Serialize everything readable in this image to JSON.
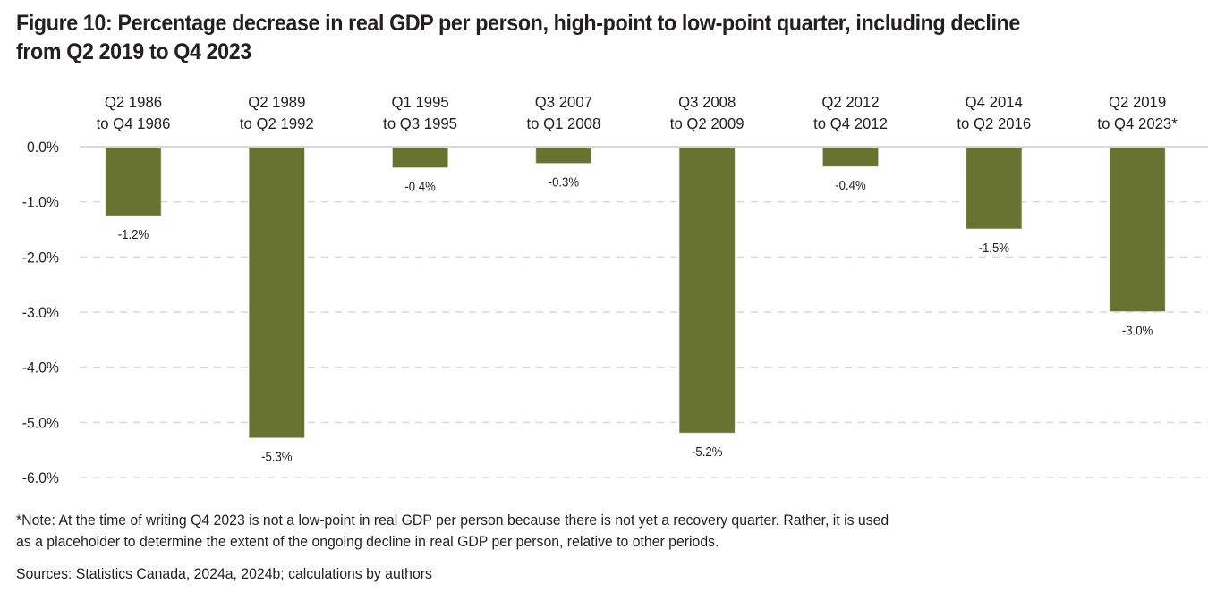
{
  "title_line1": "Figure 10: Percentage decrease in real GDP per person, high-point to low-point quarter, including decline",
  "title_line2": "from Q2 2019 to Q4 2023",
  "note_line1": "*Note: At the time of writing Q4 2023 is not a low-point in real GDP per person because there is not yet a recovery quarter. Rather, it is used",
  "note_line2": "as a placeholder to determine the extent of the ongoing decline in real GDP per person, relative to other periods.",
  "sources": "Sources: Statistics Canada, 2024a, 2024b; calculations by authors",
  "colors": {
    "bar": "#687332",
    "grid": "#d9d9d9",
    "text": "#231f20"
  },
  "chart_data": {
    "type": "bar",
    "title": "Figure 10: Percentage decrease in real GDP per person, high-point to low-point quarter, including decline from Q2 2019 to Q4 2023",
    "xlabel": "",
    "ylabel": "",
    "categories": [
      [
        "Q2 1986",
        "to Q4 1986"
      ],
      [
        "Q2 1989",
        "to Q2 1992"
      ],
      [
        "Q1 1995",
        "to Q3 1995"
      ],
      [
        "Q3 2007",
        "to Q1 2008"
      ],
      [
        "Q3 2008",
        "to Q2 2009"
      ],
      [
        "Q2 2012",
        "to Q4 2012"
      ],
      [
        "Q4 2014",
        "to Q2 2016"
      ],
      [
        "Q2 2019",
        "to Q4 2023*"
      ]
    ],
    "values": [
      -1.25,
      -5.28,
      -0.38,
      -0.3,
      -5.19,
      -0.36,
      -1.49,
      -2.99
    ],
    "data_labels": [
      "-1.2%",
      "-5.3%",
      "-0.4%",
      "-0.3%",
      "-5.2%",
      "-0.4%",
      "-1.5%",
      "-3.0%"
    ],
    "ylim": [
      -6.0,
      0.0
    ],
    "yticks": [
      0,
      -1,
      -2,
      -3,
      -4,
      -5,
      -6
    ],
    "ytick_labels": [
      "0.0%",
      "-1.0%",
      "-2.0%",
      "-3.0%",
      "-4.0%",
      "-5.0%",
      "-6.0%"
    ],
    "grid": true,
    "category_labels_position": "top",
    "legend": "none"
  }
}
